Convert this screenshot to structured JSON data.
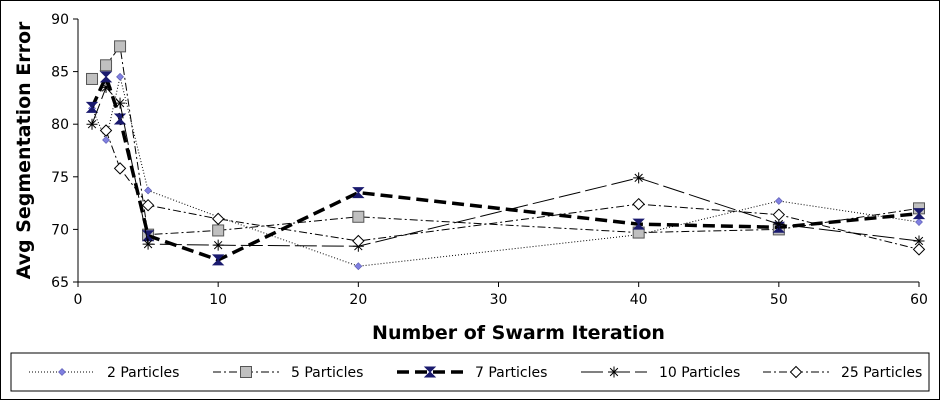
{
  "chart_data": {
    "type": "line",
    "title": "",
    "xlabel": "Number of Swarm Iteration",
    "ylabel": "Avg Segmentation Error",
    "xlim": [
      0,
      60
    ],
    "ylim": [
      65,
      90
    ],
    "x_ticks": [
      0,
      10,
      20,
      30,
      40,
      50,
      60
    ],
    "y_ticks": [
      65,
      70,
      75,
      80,
      85,
      90
    ],
    "grid": false,
    "legend_position": "bottom",
    "series": [
      {
        "name": "2 Particles",
        "x": [
          1,
          2,
          3,
          5,
          10,
          20,
          40,
          50,
          60
        ],
        "values": [
          81.5,
          78.5,
          84.5,
          73.7,
          71.2,
          66.5,
          69.5,
          72.7,
          70.7
        ],
        "color": "#000000",
        "marker_color": "#8080e0",
        "style": "dotted",
        "marker": "diamond-small"
      },
      {
        "name": "5 Particles",
        "x": [
          1,
          2,
          3,
          5,
          10,
          20,
          40,
          50,
          60
        ],
        "values": [
          84.3,
          85.6,
          87.4,
          69.5,
          69.9,
          71.2,
          69.7,
          70.0,
          72.0
        ],
        "color": "#000000",
        "marker_color": "#c0c0c0",
        "style": "dashdot",
        "marker": "square"
      },
      {
        "name": "7 Particles",
        "x": [
          1,
          2,
          3,
          5,
          10,
          20,
          40,
          50,
          60
        ],
        "values": [
          81.6,
          84.5,
          80.5,
          69.4,
          67.1,
          73.5,
          70.5,
          70.2,
          71.5
        ],
        "color": "#000000",
        "marker_color": "#1a1a6e",
        "style": "bold-dashed",
        "marker": "hourglass"
      },
      {
        "name": "10 Particles",
        "x": [
          1,
          2,
          3,
          5,
          10,
          20,
          40,
          50,
          60
        ],
        "values": [
          80.0,
          83.5,
          82.0,
          68.6,
          68.5,
          68.4,
          74.9,
          70.5,
          68.9
        ],
        "color": "#000000",
        "marker_color": "#000000",
        "style": "longdash",
        "marker": "asterisk"
      },
      {
        "name": "25 Particles",
        "x": [
          2,
          3,
          5,
          10,
          20,
          40,
          50,
          60
        ],
        "values": [
          79.4,
          75.8,
          72.3,
          71.0,
          68.9,
          72.4,
          71.4,
          68.1
        ],
        "color": "#000000",
        "marker_color": "#ffffff",
        "style": "dashdot",
        "marker": "diamond-open"
      }
    ]
  }
}
